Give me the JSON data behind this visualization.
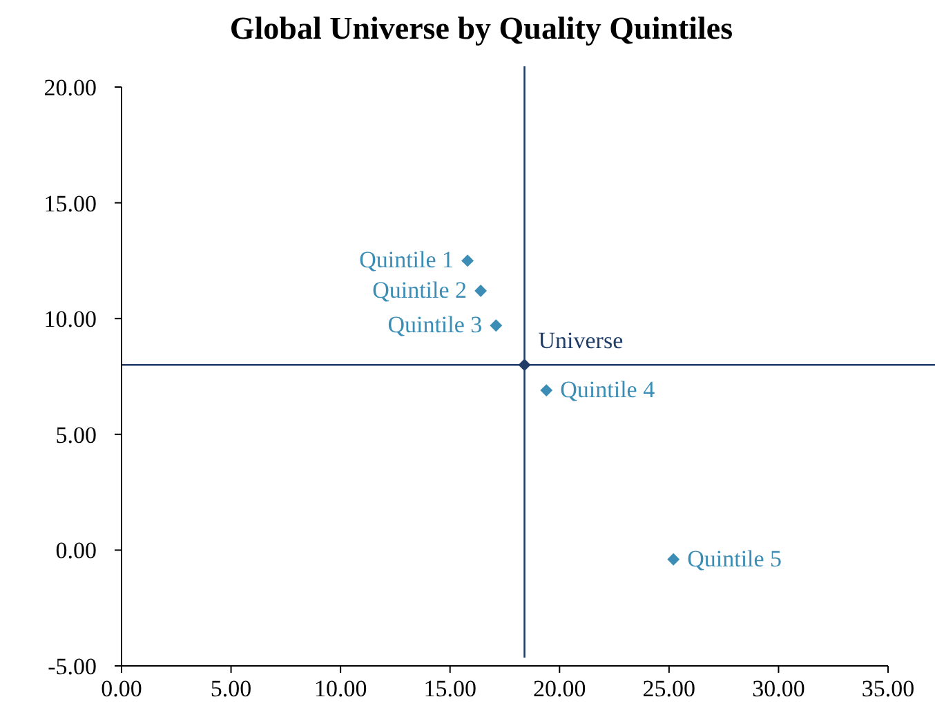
{
  "chart_data": {
    "type": "scatter",
    "title": "Global Universe by Quality Quintiles",
    "series": [
      {
        "name": "Quintile 1",
        "color": "#3b8db5",
        "x": [
          15.8
        ],
        "values": [
          12.5
        ]
      },
      {
        "name": "Quintile 2",
        "color": "#3b8db5",
        "x": [
          16.4
        ],
        "values": [
          11.2
        ]
      },
      {
        "name": "Quintile 3",
        "color": "#3b8db5",
        "x": [
          17.1
        ],
        "values": [
          9.7
        ]
      },
      {
        "name": "Universe",
        "color": "#1f3d66",
        "x": [
          18.4
        ],
        "values": [
          8.0
        ]
      },
      {
        "name": "Quintile 4",
        "color": "#3b8db5",
        "x": [
          19.4
        ],
        "values": [
          6.9
        ]
      },
      {
        "name": "Quintile 5",
        "color": "#3b8db5",
        "x": [
          25.2
        ],
        "values": [
          -0.4
        ]
      }
    ],
    "ref_lines": [
      {
        "axis": "x",
        "value": 18.4,
        "color": "#1f3d66"
      },
      {
        "axis": "y",
        "value": 8.0,
        "color": "#1f3d66"
      }
    ],
    "xlim": [
      0,
      35
    ],
    "xticks": [
      {
        "value": 0,
        "label": "0.00"
      },
      {
        "value": 5,
        "label": "5.00"
      },
      {
        "value": 10,
        "label": "10.00"
      },
      {
        "value": 15,
        "label": "15.00"
      },
      {
        "value": 20,
        "label": "20.00"
      },
      {
        "value": 25,
        "label": "25.00"
      },
      {
        "value": 30,
        "label": "30.00"
      },
      {
        "value": 35,
        "label": "35.00"
      }
    ],
    "ylim": [
      -5,
      20
    ],
    "yticks": [
      {
        "value": -5,
        "label": "-5.00"
      },
      {
        "value": 0,
        "label": "0.00"
      },
      {
        "value": 5,
        "label": "5.00"
      },
      {
        "value": 10,
        "label": "10.00"
      },
      {
        "value": 15,
        "label": "15.00"
      },
      {
        "value": 20,
        "label": "20.00"
      }
    ],
    "marker": "diamond",
    "grid": false
  }
}
